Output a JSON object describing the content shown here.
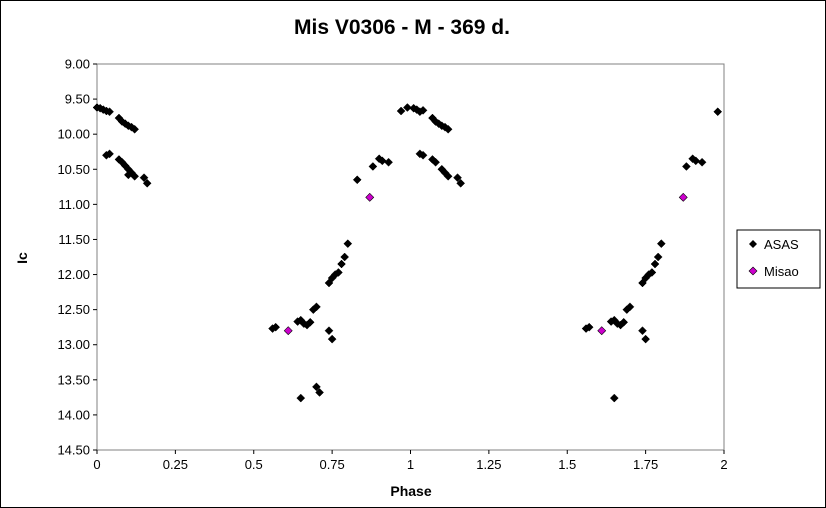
{
  "chart_data": {
    "type": "scatter",
    "title": "Mis V0306 - M - 369 d.",
    "xlabel": "Phase",
    "ylabel": "Ic",
    "xlim": [
      0,
      2
    ],
    "ylim": [
      9.0,
      14.5
    ],
    "y_inverted": true,
    "x_ticks": [
      "0",
      "0.25",
      "0.5",
      "0.75",
      "1",
      "1.25",
      "1.5",
      "1.75",
      "2"
    ],
    "y_ticks": [
      "9.00",
      "9.50",
      "10.00",
      "10.50",
      "11.00",
      "11.50",
      "12.00",
      "12.50",
      "13.00",
      "13.50",
      "14.00",
      "14.50"
    ],
    "legend_position": "right",
    "background_color": "#ffffff",
    "series": [
      {
        "name": "ASAS",
        "color": "#000000",
        "marker": "diamond",
        "points": [
          [
            0.0,
            9.62
          ],
          [
            0.01,
            9.63
          ],
          [
            0.02,
            9.65
          ],
          [
            0.03,
            9.67
          ],
          [
            0.04,
            9.68
          ],
          [
            0.03,
            10.3
          ],
          [
            0.04,
            10.28
          ],
          [
            0.07,
            9.77
          ],
          [
            0.08,
            9.82
          ],
          [
            0.09,
            9.85
          ],
          [
            0.1,
            9.88
          ],
          [
            0.11,
            9.9
          ],
          [
            0.12,
            9.93
          ],
          [
            0.07,
            10.36
          ],
          [
            0.08,
            10.4
          ],
          [
            0.09,
            10.45
          ],
          [
            0.1,
            10.5
          ],
          [
            0.11,
            10.55
          ],
          [
            0.1,
            10.58
          ],
          [
            0.12,
            10.6
          ],
          [
            0.15,
            10.62
          ],
          [
            0.16,
            10.7
          ],
          [
            0.56,
            12.77
          ],
          [
            0.57,
            12.75
          ],
          [
            0.64,
            12.67
          ],
          [
            0.65,
            12.65
          ],
          [
            0.66,
            12.7
          ],
          [
            0.67,
            12.72
          ],
          [
            0.68,
            12.68
          ],
          [
            0.69,
            12.5
          ],
          [
            0.7,
            12.46
          ],
          [
            0.65,
            13.76
          ],
          [
            0.7,
            13.6
          ],
          [
            0.71,
            13.68
          ],
          [
            0.74,
            12.8
          ],
          [
            0.75,
            12.92
          ],
          [
            0.74,
            12.12
          ],
          [
            0.75,
            12.05
          ],
          [
            0.76,
            12.0
          ],
          [
            0.77,
            11.97
          ],
          [
            0.78,
            11.85
          ],
          [
            0.79,
            11.75
          ],
          [
            0.8,
            11.56
          ],
          [
            0.83,
            10.65
          ],
          [
            0.88,
            10.46
          ],
          [
            0.9,
            10.35
          ],
          [
            0.91,
            10.38
          ],
          [
            0.93,
            10.4
          ],
          [
            0.97,
            9.67
          ],
          [
            0.99,
            9.62
          ],
          [
            1.01,
            9.63
          ],
          [
            1.02,
            9.65
          ],
          [
            1.03,
            9.68
          ],
          [
            1.04,
            9.66
          ],
          [
            1.03,
            10.28
          ],
          [
            1.04,
            10.3
          ],
          [
            1.07,
            9.77
          ],
          [
            1.08,
            9.82
          ],
          [
            1.09,
            9.85
          ],
          [
            1.1,
            9.88
          ],
          [
            1.11,
            9.9
          ],
          [
            1.12,
            9.93
          ],
          [
            1.07,
            10.36
          ],
          [
            1.08,
            10.4
          ],
          [
            1.1,
            10.5
          ],
          [
            1.11,
            10.55
          ],
          [
            1.12,
            10.6
          ],
          [
            1.15,
            10.62
          ],
          [
            1.16,
            10.7
          ],
          [
            1.56,
            12.77
          ],
          [
            1.57,
            12.75
          ],
          [
            1.64,
            12.67
          ],
          [
            1.65,
            12.65
          ],
          [
            1.66,
            12.7
          ],
          [
            1.67,
            12.72
          ],
          [
            1.68,
            12.68
          ],
          [
            1.69,
            12.5
          ],
          [
            1.7,
            12.46
          ],
          [
            1.65,
            13.76
          ],
          [
            1.74,
            12.8
          ],
          [
            1.75,
            12.92
          ],
          [
            1.74,
            12.12
          ],
          [
            1.75,
            12.05
          ],
          [
            1.76,
            12.0
          ],
          [
            1.77,
            11.97
          ],
          [
            1.78,
            11.85
          ],
          [
            1.79,
            11.75
          ],
          [
            1.8,
            11.56
          ],
          [
            1.88,
            10.46
          ],
          [
            1.9,
            10.35
          ],
          [
            1.91,
            10.38
          ],
          [
            1.93,
            10.4
          ],
          [
            1.98,
            9.68
          ]
        ]
      },
      {
        "name": "Misao",
        "color": "#cc00cc",
        "marker": "diamond",
        "points": [
          [
            0.61,
            12.8
          ],
          [
            0.87,
            10.9
          ],
          [
            1.61,
            12.8
          ],
          [
            1.87,
            10.9
          ]
        ]
      }
    ]
  }
}
